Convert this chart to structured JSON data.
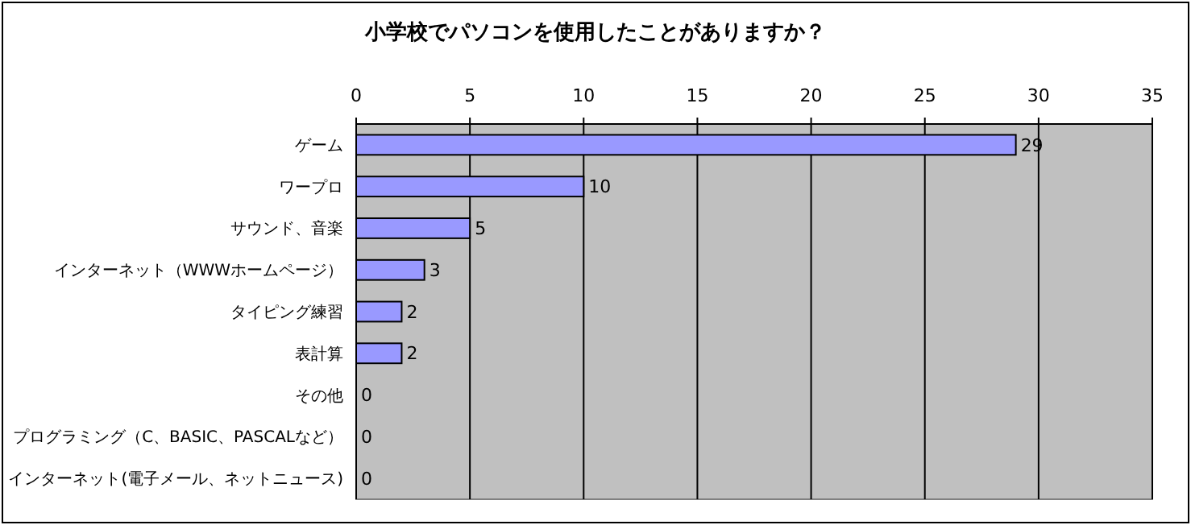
{
  "chart_data": {
    "type": "bar",
    "orientation": "horizontal",
    "title": "小学校でパソコンを使用したことがありますか？",
    "categories": [
      "ゲーム",
      "ワープロ",
      "サウンド、音楽",
      "インターネット（WWWホームページ）",
      "タイピング練習",
      "表計算",
      "その他",
      "プログラミング（C、BASIC、PASCALなど）",
      "インターネット(電子メール、ネットニュース)"
    ],
    "values": [
      29,
      10,
      5,
      3,
      2,
      2,
      0,
      0,
      0
    ],
    "color": "#9999ff",
    "xlim": [
      0,
      35
    ],
    "xticks": [
      0,
      5,
      10,
      15,
      20,
      25,
      30,
      35
    ],
    "grid": "x",
    "data_labels": true
  }
}
